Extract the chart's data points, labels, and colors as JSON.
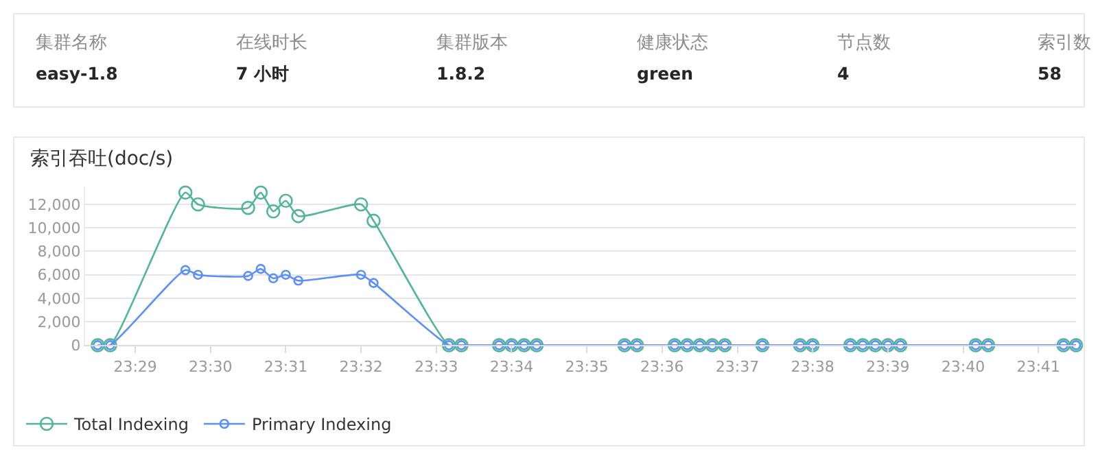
{
  "chart_data": [
    {
      "type": "other",
      "categories": [
        "集群名称",
        "在线时长",
        "集群版本",
        "健康状态",
        "节点数",
        "索引数"
      ],
      "value_labels": [
        "easy-1.8",
        "7 小时",
        "1.8.2",
        "green",
        "4",
        "58"
      ]
    },
    {
      "type": "line",
      "title": "索引吞吐(doc/s)",
      "x": [
        23.475,
        23.47778,
        23.49444,
        23.49722,
        23.50833,
        23.51111,
        23.51389,
        23.51667,
        23.51944,
        23.53333,
        23.53611,
        23.55278,
        23.55556,
        23.56389,
        23.56667,
        23.56944,
        23.57222,
        23.59167,
        23.59444,
        23.60278,
        23.60556,
        23.60833,
        23.61111,
        23.61389,
        23.62222,
        23.63056,
        23.63333,
        23.64167,
        23.64444,
        23.64722,
        23.65,
        23.65278,
        23.66944,
        23.67222,
        23.68889,
        23.69167
      ],
      "series": [
        {
          "name": "Total Indexing",
          "color": "#52b596",
          "values": [
            0,
            0,
            13000,
            12000,
            11700,
            13000,
            11400,
            12300,
            11000,
            12000,
            10600,
            0,
            0,
            0,
            0,
            0,
            0,
            0,
            0,
            0,
            0,
            0,
            0,
            0,
            0,
            0,
            0,
            0,
            0,
            0,
            0,
            0,
            0,
            0,
            0,
            0
          ]
        },
        {
          "name": "Primary Indexing",
          "color": "#5b8ff9",
          "values": [
            0,
            0,
            6400,
            6000,
            5900,
            6500,
            5700,
            6000,
            5500,
            6000,
            5300,
            0,
            0,
            0,
            0,
            0,
            0,
            0,
            0,
            0,
            0,
            0,
            0,
            0,
            0,
            0,
            0,
            0,
            0,
            0,
            0,
            0,
            0,
            0,
            0,
            0
          ]
        }
      ],
      "xlim": [
        23.47222,
        23.69167
      ],
      "xticks": [
        {
          "value": 23.48333,
          "label": "23:29"
        },
        {
          "value": 23.5,
          "label": "23:30"
        },
        {
          "value": 23.51667,
          "label": "23:31"
        },
        {
          "value": 23.53333,
          "label": "23:32"
        },
        {
          "value": 23.55,
          "label": "23:33"
        },
        {
          "value": 23.56667,
          "label": "23:34"
        },
        {
          "value": 23.58333,
          "label": "23:35"
        },
        {
          "value": 23.6,
          "label": "23:36"
        },
        {
          "value": 23.61667,
          "label": "23:37"
        },
        {
          "value": 23.63333,
          "label": "23:38"
        },
        {
          "value": 23.65,
          "label": "23:39"
        },
        {
          "value": 23.66667,
          "label": "23:40"
        },
        {
          "value": 23.68333,
          "label": "23:41"
        }
      ],
      "ylim": [
        0,
        13500
      ],
      "yticks": [
        0,
        {
          "value": 2000,
          "label": "2,000"
        },
        {
          "value": 4000,
          "label": "4,000"
        },
        {
          "value": 6000,
          "label": "6,000"
        },
        {
          "value": 8000,
          "label": "8,000"
        },
        {
          "value": 10000,
          "label": "10,000"
        },
        {
          "value": 12000,
          "label": "12,000"
        }
      ],
      "grid": "y",
      "legend": "bottom left",
      "marker": "circle",
      "line_style": "solid"
    }
  ]
}
